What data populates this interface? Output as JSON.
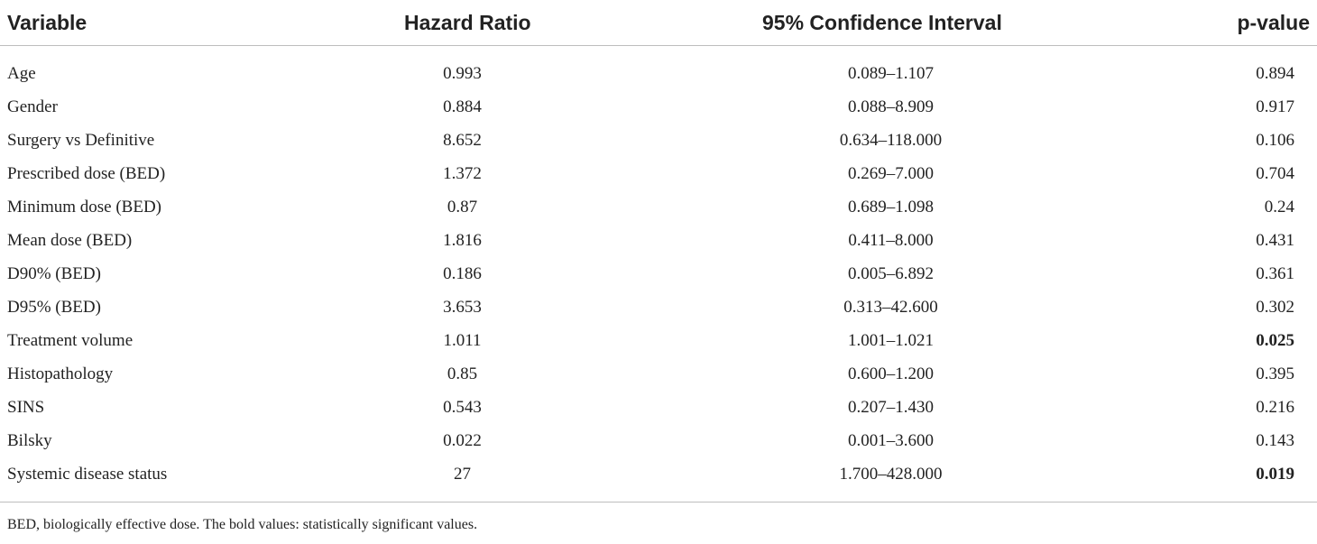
{
  "table": {
    "headers": {
      "variable": "Variable",
      "hazard_ratio": "Hazard Ratio",
      "ci": "95% Confidence Interval",
      "p_value": "p-value"
    },
    "rows": [
      {
        "variable": "Age",
        "hazard_ratio": "0.993",
        "ci": "0.089–1.107",
        "p_value": "0.894",
        "significant": false
      },
      {
        "variable": "Gender",
        "hazard_ratio": "0.884",
        "ci": "0.088–8.909",
        "p_value": "0.917",
        "significant": false
      },
      {
        "variable": "Surgery vs Definitive",
        "hazard_ratio": "8.652",
        "ci": "0.634–118.000",
        "p_value": "0.106",
        "significant": false
      },
      {
        "variable": "Prescribed dose (BED)",
        "hazard_ratio": "1.372",
        "ci": "0.269–7.000",
        "p_value": "0.704",
        "significant": false
      },
      {
        "variable": "Minimum dose (BED)",
        "hazard_ratio": "0.87",
        "ci": "0.689–1.098",
        "p_value": "0.24",
        "significant": false
      },
      {
        "variable": "Mean dose (BED)",
        "hazard_ratio": "1.816",
        "ci": "0.411–8.000",
        "p_value": "0.431",
        "significant": false
      },
      {
        "variable": "D90% (BED)",
        "hazard_ratio": "0.186",
        "ci": "0.005–6.892",
        "p_value": "0.361",
        "significant": false
      },
      {
        "variable": "D95% (BED)",
        "hazard_ratio": "3.653",
        "ci": "0.313–42.600",
        "p_value": "0.302",
        "significant": false
      },
      {
        "variable": "Treatment volume",
        "hazard_ratio": "1.011",
        "ci": "1.001–1.021",
        "p_value": "0.025",
        "significant": true
      },
      {
        "variable": "Histopathology",
        "hazard_ratio": "0.85",
        "ci": "0.600–1.200",
        "p_value": "0.395",
        "significant": false
      },
      {
        "variable": "SINS",
        "hazard_ratio": "0.543",
        "ci": "0.207–1.430",
        "p_value": "0.216",
        "significant": false
      },
      {
        "variable": "Bilsky",
        "hazard_ratio": "0.022",
        "ci": "0.001–3.600",
        "p_value": "0.143",
        "significant": false
      },
      {
        "variable": "Systemic disease status",
        "hazard_ratio": "27",
        "ci": "1.700–428.000",
        "p_value": "0.019",
        "significant": true
      }
    ]
  },
  "footnote": "BED, biologically effective dose. The bold values: statistically significant values."
}
